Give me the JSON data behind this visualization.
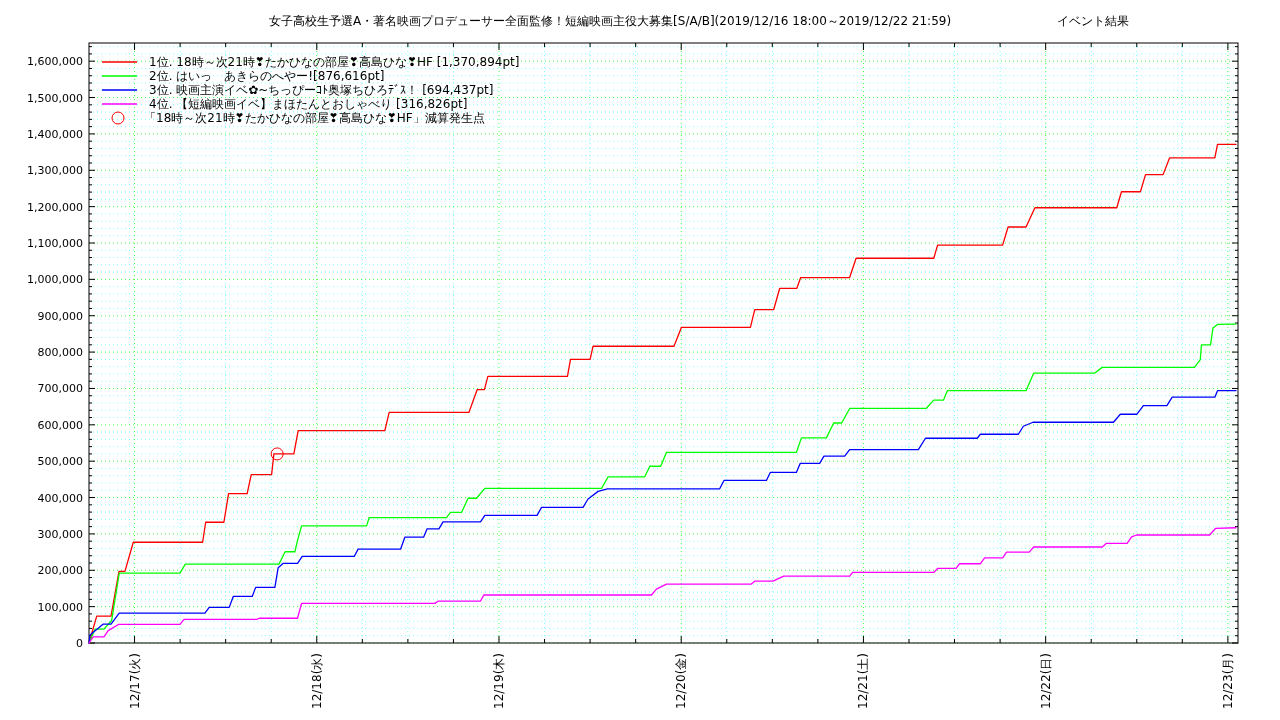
{
  "chart_data": {
    "type": "line",
    "title": "女子高校生予選A・著名映画プロデューサー全面監修！短編映画主役大募集[S/A/B](2019/12/16 18:00～2019/12/22 21:59)",
    "subtitle": "イベント結果",
    "xlim": [
      "2019-12-16T18:00",
      "2019-12-23T01:20"
    ],
    "ylim": [
      0,
      1650000
    ],
    "xticks": [
      {
        "value": "2019-12-17T00:00",
        "label": "12/17(火)"
      },
      {
        "value": "2019-12-17T06:00",
        "label": null
      },
      {
        "value": "2019-12-17T12:00",
        "label": null
      },
      {
        "value": "2019-12-17T18:00",
        "label": null
      },
      {
        "value": "2019-12-18T00:00",
        "label": "12/18(水)"
      },
      {
        "value": "2019-12-18T06:00",
        "label": null
      },
      {
        "value": "2019-12-18T12:00",
        "label": null
      },
      {
        "value": "2019-12-18T18:00",
        "label": null
      },
      {
        "value": "2019-12-19T00:00",
        "label": "12/19(木)"
      },
      {
        "value": "2019-12-19T06:00",
        "label": null
      },
      {
        "value": "2019-12-19T12:00",
        "label": null
      },
      {
        "value": "2019-12-19T18:00",
        "label": null
      },
      {
        "value": "2019-12-20T00:00",
        "label": "12/20(金)"
      },
      {
        "value": "2019-12-20T06:00",
        "label": null
      },
      {
        "value": "2019-12-20T12:00",
        "label": null
      },
      {
        "value": "2019-12-20T18:00",
        "label": null
      },
      {
        "value": "2019-12-21T00:00",
        "label": "12/21(土)"
      },
      {
        "value": "2019-12-21T06:00",
        "label": null
      },
      {
        "value": "2019-12-21T12:00",
        "label": null
      },
      {
        "value": "2019-12-21T18:00",
        "label": null
      },
      {
        "value": "2019-12-22T00:00",
        "label": "12/22(日)"
      },
      {
        "value": "2019-12-22T06:00",
        "label": null
      },
      {
        "value": "2019-12-22T12:00",
        "label": null
      },
      {
        "value": "2019-12-22T18:00",
        "label": null
      },
      {
        "value": "2019-12-23T00:00",
        "label": "12/23(月)"
      }
    ],
    "yticks": [
      0,
      {
        "value": 20000,
        "label": null
      },
      {
        "value": 40000,
        "label": null
      },
      {
        "value": 60000,
        "label": null
      },
      {
        "value": 80000,
        "label": null
      },
      {
        "value": 100000,
        "label": "100,000"
      },
      {
        "value": 120000,
        "label": null
      },
      {
        "value": 140000,
        "label": null
      },
      {
        "value": 160000,
        "label": null
      },
      {
        "value": 180000,
        "label": null
      },
      {
        "value": 200000,
        "label": "200,000"
      },
      {
        "value": 220000,
        "label": null
      },
      {
        "value": 240000,
        "label": null
      },
      {
        "value": 260000,
        "label": null
      },
      {
        "value": 280000,
        "label": null
      },
      {
        "value": 300000,
        "label": "300,000"
      },
      {
        "value": 320000,
        "label": null
      },
      {
        "value": 340000,
        "label": null
      },
      {
        "value": 360000,
        "label": null
      },
      {
        "value": 380000,
        "label": null
      },
      {
        "value": 400000,
        "label": "400,000"
      },
      {
        "value": 420000,
        "label": null
      },
      {
        "value": 440000,
        "label": null
      },
      {
        "value": 460000,
        "label": null
      },
      {
        "value": 480000,
        "label": null
      },
      {
        "value": 500000,
        "label": "500,000"
      },
      {
        "value": 520000,
        "label": null
      },
      {
        "value": 540000,
        "label": null
      },
      {
        "value": 560000,
        "label": null
      },
      {
        "value": 580000,
        "label": null
      },
      {
        "value": 600000,
        "label": "600,000"
      },
      {
        "value": 620000,
        "label": null
      },
      {
        "value": 640000,
        "label": null
      },
      {
        "value": 660000,
        "label": null
      },
      {
        "value": 680000,
        "label": null
      },
      {
        "value": 700000,
        "label": "700,000"
      },
      {
        "value": 720000,
        "label": null
      },
      {
        "value": 740000,
        "label": null
      },
      {
        "value": 760000,
        "label": null
      },
      {
        "value": 780000,
        "label": null
      },
      {
        "value": 800000,
        "label": "800,000"
      },
      {
        "value": 820000,
        "label": null
      },
      {
        "value": 840000,
        "label": null
      },
      {
        "value": 860000,
        "label": null
      },
      {
        "value": 880000,
        "label": null
      },
      {
        "value": 900000,
        "label": "900,000"
      },
      {
        "value": 920000,
        "label": null
      },
      {
        "value": 940000,
        "label": null
      },
      {
        "value": 960000,
        "label": null
      },
      {
        "value": 980000,
        "label": null
      },
      {
        "value": 1000000,
        "label": "1,000,000"
      },
      {
        "value": 1020000,
        "label": null
      },
      {
        "value": 1040000,
        "label": null
      },
      {
        "value": 1060000,
        "label": null
      },
      {
        "value": 1080000,
        "label": null
      },
      {
        "value": 1100000,
        "label": "1,100,000"
      },
      {
        "value": 1120000,
        "label": null
      },
      {
        "value": 1140000,
        "label": null
      },
      {
        "value": 1160000,
        "label": null
      },
      {
        "value": 1180000,
        "label": null
      },
      {
        "value": 1200000,
        "label": "1,200,000"
      },
      {
        "value": 1220000,
        "label": null
      },
      {
        "value": 1240000,
        "label": null
      },
      {
        "value": 1260000,
        "label": null
      },
      {
        "value": 1280000,
        "label": null
      },
      {
        "value": 1300000,
        "label": "1,300,000"
      },
      {
        "value": 1320000,
        "label": null
      },
      {
        "value": 1340000,
        "label": null
      },
      {
        "value": 1360000,
        "label": null
      },
      {
        "value": 1380000,
        "label": null
      },
      {
        "value": 1400000,
        "label": "1,400,000"
      },
      {
        "value": 1420000,
        "label": null
      },
      {
        "value": 1440000,
        "label": null
      },
      {
        "value": 1460000,
        "label": null
      },
      {
        "value": 1480000,
        "label": null
      },
      {
        "value": 1500000,
        "label": "1,500,000"
      },
      {
        "value": 1520000,
        "label": null
      },
      {
        "value": 1540000,
        "label": null
      },
      {
        "value": 1560000,
        "label": null
      },
      {
        "value": 1580000,
        "label": null
      },
      {
        "value": 1600000,
        "label": "1,600,000"
      },
      {
        "value": 1620000,
        "label": null
      },
      {
        "value": 1640000,
        "label": null
      }
    ],
    "grid": true,
    "legend": "top left",
    "series": [
      {
        "name": "1位. 18時～次21時❣たかひなの部屋❣高島ひな❣HF [1,370,894pt]",
        "color": "#ff0000",
        "x": [
          "2019-12-16T18:00",
          "2019-12-16T19:01",
          "2019-12-16T20:54",
          "2019-12-16T21:57",
          "2019-12-16T22:44",
          "2019-12-16T23:50",
          "2019-12-17T08:58",
          "2019-12-17T09:22",
          "2019-12-17T11:46",
          "2019-12-17T12:23",
          "2019-12-17T14:50",
          "2019-12-17T15:22",
          "2019-12-17T18:03",
          "2019-12-17T18:21",
          "2019-12-17T20:59",
          "2019-12-17T21:33",
          "2019-12-18T08:58",
          "2019-12-18T09:32",
          "2019-12-18T20:02",
          "2019-12-18T21:08",
          "2019-12-18T22:05",
          "2019-12-18T22:32",
          "2019-12-19T09:01",
          "2019-12-19T09:25",
          "2019-12-19T12:00",
          "2019-12-19T12:23",
          "2019-12-19T23:03",
          "2019-12-20T00:02",
          "2019-12-20T09:07",
          "2019-12-20T09:41",
          "2019-12-20T12:11",
          "2019-12-20T12:58",
          "2019-12-20T15:13",
          "2019-12-20T15:44",
          "2019-12-20T22:11",
          "2019-12-20T23:02",
          "2019-12-21T09:16",
          "2019-12-21T09:46",
          "2019-12-21T18:20",
          "2019-12-21T19:03",
          "2019-12-21T21:25",
          "2019-12-21T22:35",
          "2019-12-22T09:22",
          "2019-12-22T09:59",
          "2019-12-22T12:29",
          "2019-12-22T13:09",
          "2019-12-22T15:28",
          "2019-12-22T16:19",
          "2019-12-22T22:17",
          "2019-12-22T22:38",
          "2019-12-23T01:04"
        ],
        "values": [
          0,
          74000,
          74000,
          197000,
          197000,
          277000,
          277000,
          332000,
          332000,
          411000,
          411000,
          463000,
          463000,
          520000,
          520000,
          584000,
          584000,
          634000,
          634000,
          697000,
          697000,
          733000,
          733000,
          780000,
          780000,
          816000,
          816000,
          868000,
          868000,
          917000,
          917000,
          975000,
          975000,
          1005000,
          1005000,
          1058000,
          1058000,
          1094000,
          1094000,
          1144000,
          1144000,
          1197000,
          1197000,
          1241000,
          1241000,
          1288000,
          1288000,
          1334000,
          1334000,
          1371000,
          1371000
        ]
      },
      {
        "name": "2位. はいっ　あきらのへやー![876,616pt]",
        "color": "#00ff00",
        "x": [
          "2019-12-16T18:00",
          "2019-12-16T18:47",
          "2019-12-16T19:58",
          "2019-12-16T20:59",
          "2019-12-16T21:59",
          "2019-12-17T05:59",
          "2019-12-17T06:41",
          "2019-12-17T19:01",
          "2019-12-17T19:50",
          "2019-12-17T21:07",
          "2019-12-17T21:28",
          "2019-12-17T22:00",
          "2019-12-18T06:34",
          "2019-12-18T06:54",
          "2019-12-18T17:05",
          "2019-12-18T17:37",
          "2019-12-18T19:04",
          "2019-12-18T19:56",
          "2019-12-18T21:02",
          "2019-12-18T22:08",
          "2019-12-19T13:30",
          "2019-12-19T14:22",
          "2019-12-19T19:12",
          "2019-12-19T19:52",
          "2019-12-19T21:18",
          "2019-12-19T22:03",
          "2019-12-20T15:10",
          "2019-12-20T15:50",
          "2019-12-20T19:07",
          "2019-12-20T20:05",
          "2019-12-20T21:08",
          "2019-12-20T22:11",
          "2019-12-21T08:15",
          "2019-12-21T09:15",
          "2019-12-21T10:33",
          "2019-12-21T11:03",
          "2019-12-21T21:25",
          "2019-12-21T22:25",
          "2019-12-22T06:26",
          "2019-12-22T07:27",
          "2019-12-22T19:36",
          "2019-12-22T20:22",
          "2019-12-22T20:31",
          "2019-12-22T21:43",
          "2019-12-22T22:02",
          "2019-12-22T22:38",
          "2019-12-23T01:04"
        ],
        "values": [
          0,
          38000,
          38000,
          62000,
          192000,
          192000,
          217000,
          217000,
          251000,
          251000,
          282000,
          322000,
          322000,
          345000,
          345000,
          359000,
          359000,
          398000,
          398000,
          425000,
          425000,
          457000,
          457000,
          486000,
          486000,
          524000,
          524000,
          564000,
          564000,
          605000,
          605000,
          645000,
          645000,
          668000,
          668000,
          694000,
          694000,
          742000,
          742000,
          758000,
          758000,
          779000,
          820000,
          820000,
          866000,
          876000,
          877000
        ]
      },
      {
        "name": "3位. 映画主演イベ✿~ちっぴーｺﾄ奥塚ちひろﾃﾞｽ！ [694,437pt]",
        "color": "#0000ff",
        "x": [
          "2019-12-16T18:00",
          "2019-12-16T18:08",
          "2019-12-16T19:53",
          "2019-12-16T20:54",
          "2019-12-16T21:59",
          "2019-12-17T09:16",
          "2019-12-17T09:50",
          "2019-12-17T12:28",
          "2019-12-17T13:00",
          "2019-12-17T15:30",
          "2019-12-17T15:57",
          "2019-12-17T18:29",
          "2019-12-17T18:55",
          "2019-12-17T19:35",
          "2019-12-17T21:28",
          "2019-12-17T22:05",
          "2019-12-18T04:56",
          "2019-12-18T05:27",
          "2019-12-18T11:02",
          "2019-12-18T11:36",
          "2019-12-18T14:04",
          "2019-12-18T14:32",
          "2019-12-18T16:05",
          "2019-12-18T16:38",
          "2019-12-18T21:34",
          "2019-12-18T22:08",
          "2019-12-19T05:01",
          "2019-12-19T05:36",
          "2019-12-19T11:04",
          "2019-12-19T11:44",
          "2019-12-19T13:03",
          "2019-12-19T14:17",
          "2019-12-20T05:04",
          "2019-12-20T05:38",
          "2019-12-20T11:13",
          "2019-12-20T11:44",
          "2019-12-20T15:10",
          "2019-12-20T15:41",
          "2019-12-20T18:14",
          "2019-12-20T18:48",
          "2019-12-20T21:32",
          "2019-12-20T22:11",
          "2019-12-21T07:14",
          "2019-12-21T08:10",
          "2019-12-21T14:59",
          "2019-12-21T15:24",
          "2019-12-21T20:24",
          "2019-12-21T21:04",
          "2019-12-21T22:20",
          "2019-12-22T08:56",
          "2019-12-22T09:50",
          "2019-12-22T12:00",
          "2019-12-22T12:52",
          "2019-12-22T15:58",
          "2019-12-22T16:40",
          "2019-12-22T22:17",
          "2019-12-22T22:38",
          "2019-12-23T01:04"
        ],
        "values": [
          0,
          22000,
          52000,
          52000,
          82000,
          82000,
          98000,
          98000,
          128000,
          128000,
          153000,
          153000,
          207000,
          219000,
          219000,
          238000,
          238000,
          258000,
          258000,
          291000,
          291000,
          314000,
          314000,
          333000,
          333000,
          351000,
          351000,
          373000,
          373000,
          396000,
          417000,
          424000,
          424000,
          447000,
          447000,
          469000,
          469000,
          494000,
          494000,
          514000,
          514000,
          532000,
          532000,
          563000,
          563000,
          574000,
          574000,
          596000,
          607000,
          607000,
          629000,
          629000,
          653000,
          653000,
          676000,
          676000,
          694000,
          694000
        ]
      },
      {
        "name": "4位. 【短編映画イベ】まほたんとおしゃべり [316,826pt]",
        "color": "#ff00ff",
        "x": [
          "2019-12-16T18:00",
          "2019-12-16T18:34",
          "2019-12-16T19:58",
          "2019-12-16T20:32",
          "2019-12-16T21:52",
          "2019-12-17T05:59",
          "2019-12-17T06:31",
          "2019-12-17T16:05",
          "2019-12-17T16:25",
          "2019-12-17T21:28",
          "2019-12-17T22:00",
          "2019-12-18T15:33",
          "2019-12-18T15:59",
          "2019-12-18T21:34",
          "2019-12-18T22:00",
          "2019-12-19T20:05",
          "2019-12-19T20:44",
          "2019-12-19T22:03",
          "2019-12-20T09:14",
          "2019-12-20T09:41",
          "2019-12-20T12:05",
          "2019-12-20T13:30",
          "2019-12-20T22:11",
          "2019-12-20T22:35",
          "2019-12-21T09:15",
          "2019-12-21T09:46",
          "2019-12-21T12:12",
          "2019-12-21T12:40",
          "2019-12-21T15:24",
          "2019-12-21T15:58",
          "2019-12-21T18:20",
          "2019-12-21T18:51",
          "2019-12-21T21:50",
          "2019-12-21T22:25",
          "2019-12-22T07:27",
          "2019-12-22T08:01",
          "2019-12-22T10:44",
          "2019-12-22T11:19",
          "2019-12-22T11:58",
          "2019-12-22T21:35",
          "2019-12-22T22:22",
          "2019-12-23T01:04"
        ],
        "values": [
          0,
          17000,
          17000,
          34000,
          51000,
          51000,
          65000,
          65000,
          68000,
          68000,
          109000,
          109000,
          115000,
          115000,
          132000,
          132000,
          148000,
          162000,
          162000,
          170000,
          170000,
          184000,
          184000,
          194000,
          194000,
          205000,
          205000,
          218000,
          218000,
          234000,
          234000,
          250000,
          250000,
          264000,
          264000,
          274000,
          274000,
          292000,
          297000,
          297000,
          315000,
          317000
        ]
      },
      {
        "name": "「18時～次21時❣たかひなの部屋❣高島ひな❣HF」減算発生点",
        "type": "scatter",
        "marker": "circle",
        "color": "#ff0000",
        "x": [
          "2019-12-17T18:47"
        ],
        "values": [
          520000
        ]
      }
    ]
  }
}
